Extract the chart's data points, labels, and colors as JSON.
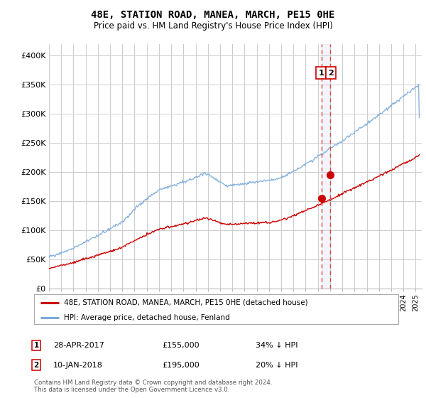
{
  "title": "48E, STATION ROAD, MANEA, MARCH, PE15 0HE",
  "subtitle": "Price paid vs. HM Land Registry's House Price Index (HPI)",
  "legend_label_red": "48E, STATION ROAD, MANEA, MARCH, PE15 0HE (detached house)",
  "legend_label_blue": "HPI: Average price, detached house, Fenland",
  "annotation1_date": "28-APR-2017",
  "annotation1_price": "£155,000",
  "annotation1_hpi": "34% ↓ HPI",
  "annotation2_date": "10-JAN-2018",
  "annotation2_price": "£195,000",
  "annotation2_hpi": "20% ↓ HPI",
  "footer": "Contains HM Land Registry data © Crown copyright and database right 2024.\nThis data is licensed under the Open Government Licence v3.0.",
  "ylim": [
    0,
    420000
  ],
  "yticks": [
    0,
    50000,
    100000,
    150000,
    200000,
    250000,
    300000,
    350000,
    400000
  ],
  "ytick_labels": [
    "£0",
    "£50K",
    "£100K",
    "£150K",
    "£200K",
    "£250K",
    "£300K",
    "£350K",
    "£400K"
  ],
  "color_red": "#cc0000",
  "color_blue": "#7aaadd",
  "color_dashed": "#dd4444",
  "point1_x": 2017.32,
  "point1_y": 155000,
  "point2_x": 2018.03,
  "point2_y": 195000,
  "vline_x1": 2017.32,
  "vline_x2": 2018.03,
  "xmin": 1995,
  "xmax": 2025.5,
  "background_color": "#ffffff",
  "grid_color": "#cccccc"
}
